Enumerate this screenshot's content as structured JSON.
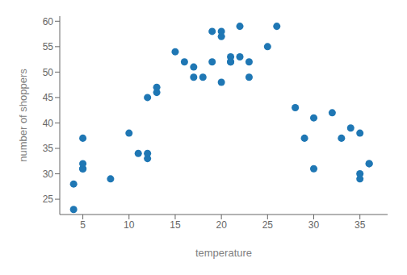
{
  "chart_data": {
    "type": "scatter",
    "x": [
      4,
      4,
      5,
      5,
      5,
      5,
      8,
      10,
      11,
      12,
      12,
      12,
      13,
      13,
      15,
      16,
      17,
      17,
      18,
      19,
      19,
      20,
      20,
      20,
      21,
      21,
      21,
      22,
      22,
      23,
      23,
      25,
      26,
      28,
      29,
      30,
      30,
      32,
      33,
      34,
      35,
      35,
      35,
      36,
      36
    ],
    "values": [
      23,
      28,
      31,
      31,
      32,
      37,
      29,
      38,
      34,
      33,
      34,
      45,
      46,
      47,
      54,
      52,
      49,
      51,
      49,
      52,
      58,
      48,
      57,
      58,
      52,
      53,
      52,
      53,
      59,
      49,
      52,
      55,
      59,
      43,
      37,
      31,
      41,
      42,
      37,
      39,
      29,
      30,
      38,
      32,
      32
    ],
    "color": "#1f77b4",
    "xlabel": "temperature",
    "ylabel": "number of shoppers",
    "xlim": [
      2.5,
      38
    ],
    "ylim": [
      22,
      61
    ],
    "xticks": [
      5,
      10,
      15,
      20,
      25,
      30,
      35
    ],
    "yticks": [
      25,
      30,
      35,
      40,
      45,
      50,
      55,
      60
    ]
  }
}
